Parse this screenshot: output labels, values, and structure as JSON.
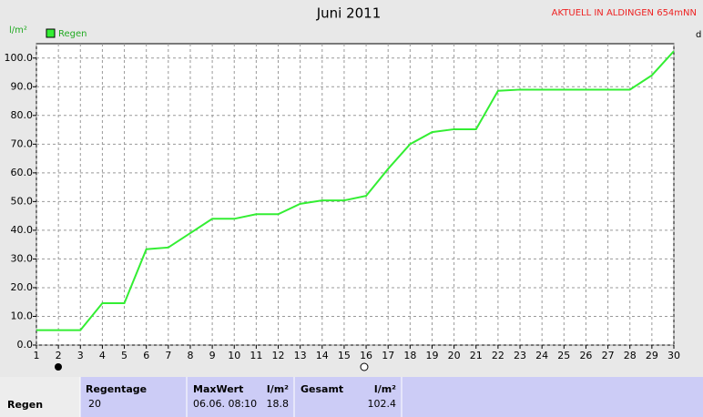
{
  "chart_data": {
    "type": "line",
    "title": "Juni 2011",
    "subtitle": "AKTUELL IN ALDINGEN 654mNN",
    "y_label": "l/m²",
    "x_label": "d",
    "grid": true,
    "x": [
      1,
      2,
      3,
      4,
      5,
      6,
      7,
      8,
      9,
      10,
      11,
      12,
      13,
      14,
      15,
      16,
      17,
      18,
      19,
      20,
      21,
      22,
      23,
      24,
      25,
      26,
      27,
      28,
      29,
      30
    ],
    "series": [
      {
        "name": "Regen",
        "color": "#33ee33",
        "values": [
          5.2,
          5.2,
          5.2,
          14.6,
          14.6,
          33.4,
          34,
          39,
          44,
          44,
          45.6,
          45.6,
          49.2,
          50.4,
          50.4,
          52,
          61.4,
          70,
          74.2,
          75.2,
          75.2,
          88.6,
          89,
          89,
          89,
          89,
          89,
          89,
          94,
          102.4
        ]
      }
    ],
    "xlim": [
      1,
      30
    ],
    "xticks": [
      1,
      2,
      3,
      4,
      5,
      6,
      7,
      8,
      9,
      10,
      11,
      12,
      13,
      14,
      15,
      16,
      17,
      18,
      19,
      20,
      21,
      22,
      23,
      24,
      25,
      26,
      27,
      28,
      29,
      30
    ],
    "ylim": [
      0,
      105
    ],
    "yticks": [
      {
        "value": 0,
        "label": "0.0"
      },
      {
        "value": 10,
        "label": "10.0"
      },
      {
        "value": 20,
        "label": "20.0"
      },
      {
        "value": 30,
        "label": "30.0"
      },
      {
        "value": 40,
        "label": "40.0"
      },
      {
        "value": 50,
        "label": "50.0"
      },
      {
        "value": 60,
        "label": "60.0"
      },
      {
        "value": 70,
        "label": "70.0"
      },
      {
        "value": 80,
        "label": "80.0"
      },
      {
        "value": 90,
        "label": "90.0"
      },
      {
        "value": 100,
        "label": "100.0"
      }
    ]
  },
  "table": {
    "row_label": "Regen",
    "regentage_header": "Regentage",
    "regentage": "20",
    "maxwert_header": "MaxWert",
    "maxwert_unit": "l/m²",
    "maxwert_time": "06.06. 08:10",
    "maxwert": "18.8",
    "gesamt_header": "Gesamt",
    "gesamt_unit": "l/m²",
    "gesamt": "102.4"
  }
}
